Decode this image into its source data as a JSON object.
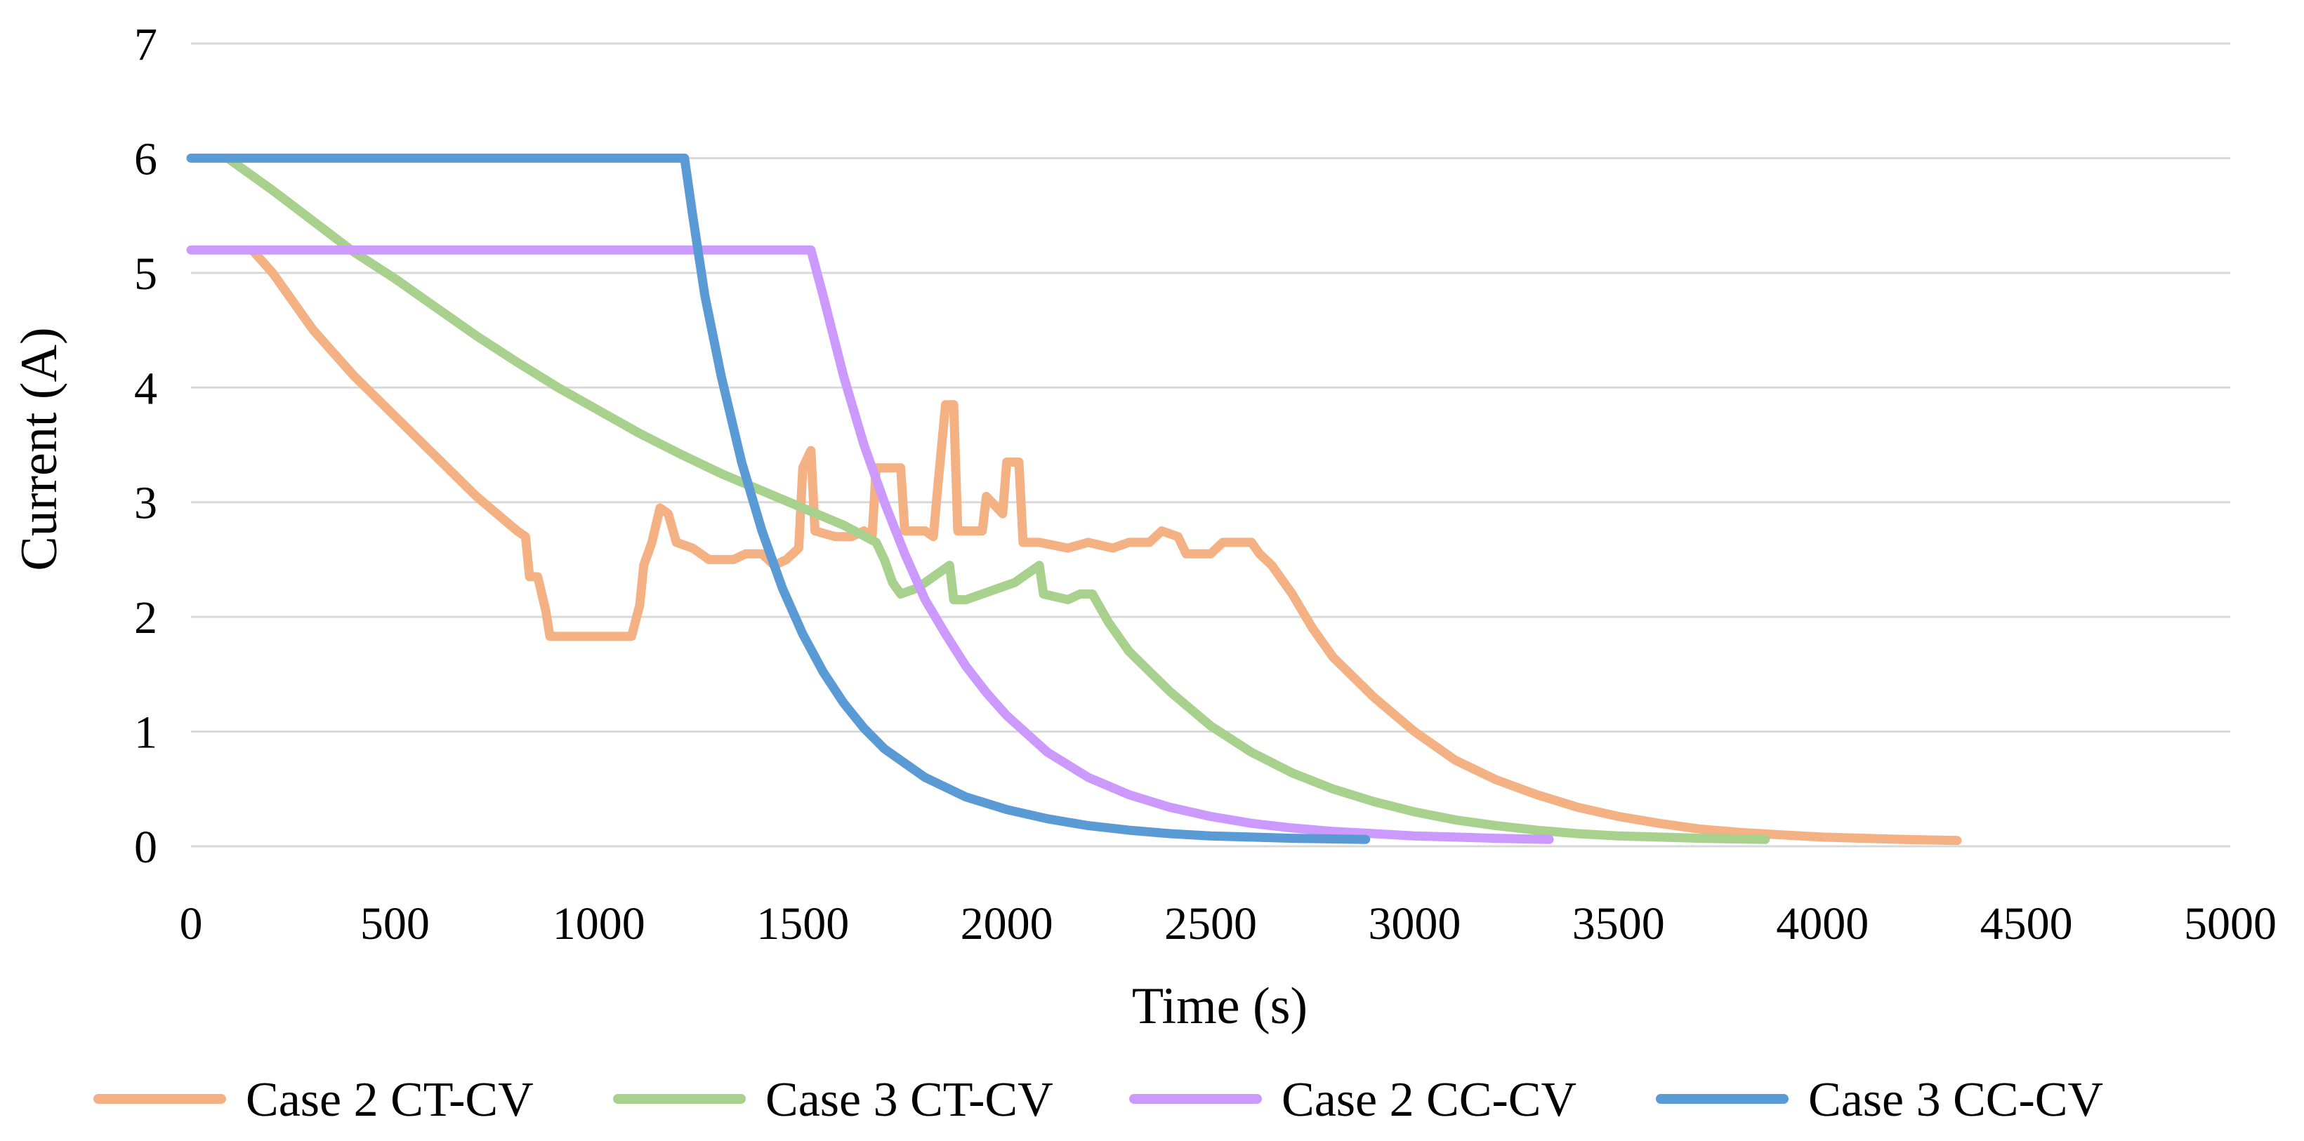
{
  "chart_data": {
    "type": "line",
    "title": "",
    "xlabel": "Time (s)",
    "ylabel": "Current (A)",
    "xlim": [
      0,
      5000
    ],
    "ylim": [
      0,
      7
    ],
    "x_ticks": [
      0,
      500,
      1000,
      1500,
      2000,
      2500,
      3000,
      3500,
      4000,
      4500,
      5000
    ],
    "y_ticks": [
      0,
      1,
      2,
      3,
      4,
      5,
      6,
      7
    ],
    "grid": true,
    "legend_position": "bottom",
    "series": [
      {
        "name": "Case 2 CT-CV",
        "color": "#f4b183",
        "points": [
          [
            150,
            5.2
          ],
          [
            200,
            5.0
          ],
          [
            300,
            4.5
          ],
          [
            400,
            4.1
          ],
          [
            500,
            3.75
          ],
          [
            600,
            3.4
          ],
          [
            700,
            3.05
          ],
          [
            750,
            2.9
          ],
          [
            800,
            2.75
          ],
          [
            820,
            2.7
          ],
          [
            830,
            2.35
          ],
          [
            850,
            2.35
          ],
          [
            870,
            2.05
          ],
          [
            880,
            1.83
          ],
          [
            1080,
            1.83
          ],
          [
            1100,
            2.1
          ],
          [
            1110,
            2.45
          ],
          [
            1130,
            2.65
          ],
          [
            1150,
            2.95
          ],
          [
            1170,
            2.9
          ],
          [
            1190,
            2.65
          ],
          [
            1230,
            2.6
          ],
          [
            1270,
            2.5
          ],
          [
            1330,
            2.5
          ],
          [
            1360,
            2.55
          ],
          [
            1400,
            2.55
          ],
          [
            1430,
            2.45
          ],
          [
            1460,
            2.5
          ],
          [
            1490,
            2.6
          ],
          [
            1500,
            3.3
          ],
          [
            1520,
            3.45
          ],
          [
            1530,
            2.75
          ],
          [
            1580,
            2.7
          ],
          [
            1620,
            2.7
          ],
          [
            1650,
            2.75
          ],
          [
            1670,
            2.7
          ],
          [
            1680,
            3.3
          ],
          [
            1740,
            3.3
          ],
          [
            1750,
            2.75
          ],
          [
            1800,
            2.75
          ],
          [
            1820,
            2.7
          ],
          [
            1830,
            3.1
          ],
          [
            1850,
            3.85
          ],
          [
            1870,
            3.85
          ],
          [
            1880,
            2.75
          ],
          [
            1940,
            2.75
          ],
          [
            1950,
            3.05
          ],
          [
            1990,
            2.9
          ],
          [
            2000,
            3.35
          ],
          [
            2030,
            3.35
          ],
          [
            2040,
            2.65
          ],
          [
            2080,
            2.65
          ],
          [
            2150,
            2.6
          ],
          [
            2200,
            2.65
          ],
          [
            2260,
            2.6
          ],
          [
            2300,
            2.65
          ],
          [
            2350,
            2.65
          ],
          [
            2380,
            2.75
          ],
          [
            2420,
            2.7
          ],
          [
            2440,
            2.55
          ],
          [
            2500,
            2.55
          ],
          [
            2530,
            2.65
          ],
          [
            2600,
            2.65
          ],
          [
            2620,
            2.55
          ],
          [
            2650,
            2.45
          ],
          [
            2680,
            2.3
          ],
          [
            2700,
            2.2
          ],
          [
            2750,
            1.9
          ],
          [
            2800,
            1.65
          ],
          [
            2900,
            1.3
          ],
          [
            3000,
            1.0
          ],
          [
            3100,
            0.75
          ],
          [
            3200,
            0.58
          ],
          [
            3300,
            0.45
          ],
          [
            3400,
            0.34
          ],
          [
            3500,
            0.26
          ],
          [
            3600,
            0.2
          ],
          [
            3700,
            0.15
          ],
          [
            3800,
            0.12
          ],
          [
            3900,
            0.1
          ],
          [
            4000,
            0.08
          ],
          [
            4100,
            0.07
          ],
          [
            4200,
            0.06
          ],
          [
            4330,
            0.05
          ]
        ]
      },
      {
        "name": "Case 3 CT-CV",
        "color": "#a9d18e",
        "points": [
          [
            90,
            6.0
          ],
          [
            200,
            5.72
          ],
          [
            300,
            5.45
          ],
          [
            400,
            5.18
          ],
          [
            500,
            4.95
          ],
          [
            600,
            4.7
          ],
          [
            700,
            4.45
          ],
          [
            800,
            4.22
          ],
          [
            900,
            4.0
          ],
          [
            1000,
            3.8
          ],
          [
            1100,
            3.6
          ],
          [
            1200,
            3.42
          ],
          [
            1300,
            3.25
          ],
          [
            1400,
            3.1
          ],
          [
            1500,
            2.95
          ],
          [
            1600,
            2.8
          ],
          [
            1680,
            2.65
          ],
          [
            1700,
            2.5
          ],
          [
            1720,
            2.3
          ],
          [
            1740,
            2.2
          ],
          [
            1780,
            2.25
          ],
          [
            1820,
            2.35
          ],
          [
            1860,
            2.45
          ],
          [
            1870,
            2.15
          ],
          [
            1900,
            2.15
          ],
          [
            1940,
            2.2
          ],
          [
            1980,
            2.25
          ],
          [
            2020,
            2.3
          ],
          [
            2060,
            2.4
          ],
          [
            2080,
            2.45
          ],
          [
            2090,
            2.2
          ],
          [
            2150,
            2.15
          ],
          [
            2180,
            2.2
          ],
          [
            2210,
            2.2
          ],
          [
            2250,
            1.95
          ],
          [
            2300,
            1.7
          ],
          [
            2400,
            1.35
          ],
          [
            2500,
            1.05
          ],
          [
            2600,
            0.82
          ],
          [
            2700,
            0.64
          ],
          [
            2800,
            0.5
          ],
          [
            2900,
            0.39
          ],
          [
            3000,
            0.3
          ],
          [
            3100,
            0.23
          ],
          [
            3200,
            0.18
          ],
          [
            3300,
            0.14
          ],
          [
            3400,
            0.11
          ],
          [
            3500,
            0.09
          ],
          [
            3600,
            0.08
          ],
          [
            3700,
            0.07
          ],
          [
            3860,
            0.06
          ]
        ]
      },
      {
        "name": "Case 2 CC-CV",
        "color": "#cc99ff",
        "points": [
          [
            0,
            5.2
          ],
          [
            1520,
            5.2
          ],
          [
            1550,
            4.8
          ],
          [
            1600,
            4.1
          ],
          [
            1650,
            3.5
          ],
          [
            1700,
            3.0
          ],
          [
            1750,
            2.55
          ],
          [
            1800,
            2.15
          ],
          [
            1850,
            1.85
          ],
          [
            1900,
            1.57
          ],
          [
            1950,
            1.34
          ],
          [
            2000,
            1.14
          ],
          [
            2100,
            0.82
          ],
          [
            2200,
            0.6
          ],
          [
            2300,
            0.45
          ],
          [
            2400,
            0.34
          ],
          [
            2500,
            0.26
          ],
          [
            2600,
            0.2
          ],
          [
            2700,
            0.16
          ],
          [
            2800,
            0.13
          ],
          [
            2900,
            0.11
          ],
          [
            3000,
            0.09
          ],
          [
            3100,
            0.08
          ],
          [
            3200,
            0.07
          ],
          [
            3330,
            0.06
          ]
        ]
      },
      {
        "name": "Case 3 CC-CV",
        "color": "#5b9bd5",
        "points": [
          [
            0,
            6.0
          ],
          [
            1210,
            6.0
          ],
          [
            1230,
            5.5
          ],
          [
            1260,
            4.8
          ],
          [
            1300,
            4.1
          ],
          [
            1350,
            3.35
          ],
          [
            1400,
            2.75
          ],
          [
            1450,
            2.25
          ],
          [
            1500,
            1.85
          ],
          [
            1550,
            1.52
          ],
          [
            1600,
            1.25
          ],
          [
            1650,
            1.03
          ],
          [
            1700,
            0.85
          ],
          [
            1800,
            0.6
          ],
          [
            1900,
            0.43
          ],
          [
            2000,
            0.32
          ],
          [
            2100,
            0.24
          ],
          [
            2200,
            0.18
          ],
          [
            2300,
            0.14
          ],
          [
            2400,
            0.11
          ],
          [
            2500,
            0.09
          ],
          [
            2600,
            0.08
          ],
          [
            2700,
            0.07
          ],
          [
            2880,
            0.06
          ]
        ]
      }
    ]
  }
}
